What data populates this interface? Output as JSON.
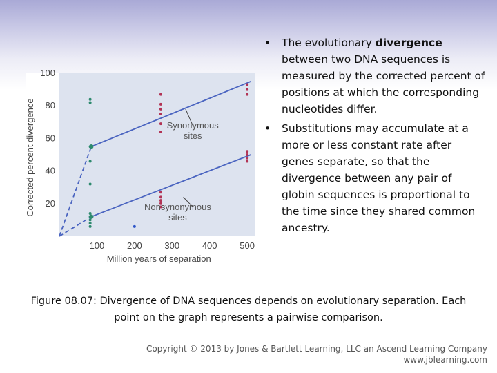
{
  "bullets": [
    {
      "marker": "•",
      "pre": "The evolutionary ",
      "bold": "divergence",
      "post": " between two DNA sequences is measured by the corrected percent of positions at which the corresponding nucleotides differ."
    },
    {
      "marker": "•",
      "pre": "Substitutions may accumulate at a more or less constant rate after genes separate, so that the divergence between any pair of globin sequences is proportional to the time since they shared common ancestry.",
      "bold": "",
      "post": ""
    }
  ],
  "caption": "Figure 08.07: Divergence of DNA sequences depends on evolutionary separation. Each point on the graph represents a pairwise comparison.",
  "copyright": {
    "line1": "Copyright © 2013 by Jones & Bartlett Learning, LLC an Ascend Learning Company",
    "line2": "www.jblearning.com"
  },
  "chart_data": {
    "type": "scatter",
    "title": "",
    "xlabel": "Million years of separation",
    "ylabel": "Corrected percent divergence",
    "xlim": [
      0,
      520
    ],
    "ylim": [
      0,
      100
    ],
    "xticks": [
      100,
      200,
      300,
      400,
      500
    ],
    "yticks": [
      20,
      40,
      60,
      80,
      100
    ],
    "grid": false,
    "background": "#dde3ef",
    "colors": {
      "green": "#2e8a6e",
      "red": "#b23355",
      "blue": "#2f56c8",
      "line": "#4a64c0"
    },
    "series": [
      {
        "name": "Synonymous sites",
        "color": "#b23355",
        "points": [
          [
            270,
            87
          ],
          [
            270,
            81
          ],
          [
            270,
            78
          ],
          [
            270,
            75
          ],
          [
            270,
            69
          ],
          [
            270,
            64
          ],
          [
            500,
            93
          ],
          [
            500,
            90
          ],
          [
            500,
            87
          ]
        ],
        "trend": [
          [
            0,
            0
          ],
          [
            85,
            55
          ],
          [
            510,
            95
          ]
        ]
      },
      {
        "name": "Nonsynonymous sites",
        "color": "#b23355",
        "points": [
          [
            270,
            27
          ],
          [
            270,
            24
          ],
          [
            270,
            22
          ],
          [
            270,
            20
          ],
          [
            270,
            18
          ],
          [
            500,
            52
          ],
          [
            500,
            50
          ],
          [
            500,
            48
          ],
          [
            500,
            46
          ]
        ],
        "trend": [
          [
            0,
            0
          ],
          [
            85,
            12
          ],
          [
            510,
            50
          ]
        ]
      },
      {
        "name": "",
        "color": "#2e8a6e",
        "points": [
          [
            82,
            84
          ],
          [
            82,
            82
          ],
          [
            82,
            55
          ],
          [
            82,
            46
          ],
          [
            82,
            32
          ],
          [
            82,
            14
          ],
          [
            82,
            12
          ],
          [
            82,
            10
          ],
          [
            82,
            8
          ],
          [
            82,
            6
          ]
        ]
      },
      {
        "name": "",
        "color": "#2f56c8",
        "points": [
          [
            200,
            6
          ]
        ]
      }
    ],
    "annotations": [
      {
        "text": [
          "Synonymous",
          "sites"
        ],
        "anchor": [
          355,
          66
        ],
        "pointer": [
          [
            355,
            68
          ],
          [
            336,
            78
          ]
        ]
      },
      {
        "text": [
          "Nonsynonymous",
          "sites"
        ],
        "anchor": [
          315,
          16
        ],
        "pointer": [
          [
            355,
            18
          ],
          [
            330,
            24
          ]
        ]
      }
    ]
  }
}
